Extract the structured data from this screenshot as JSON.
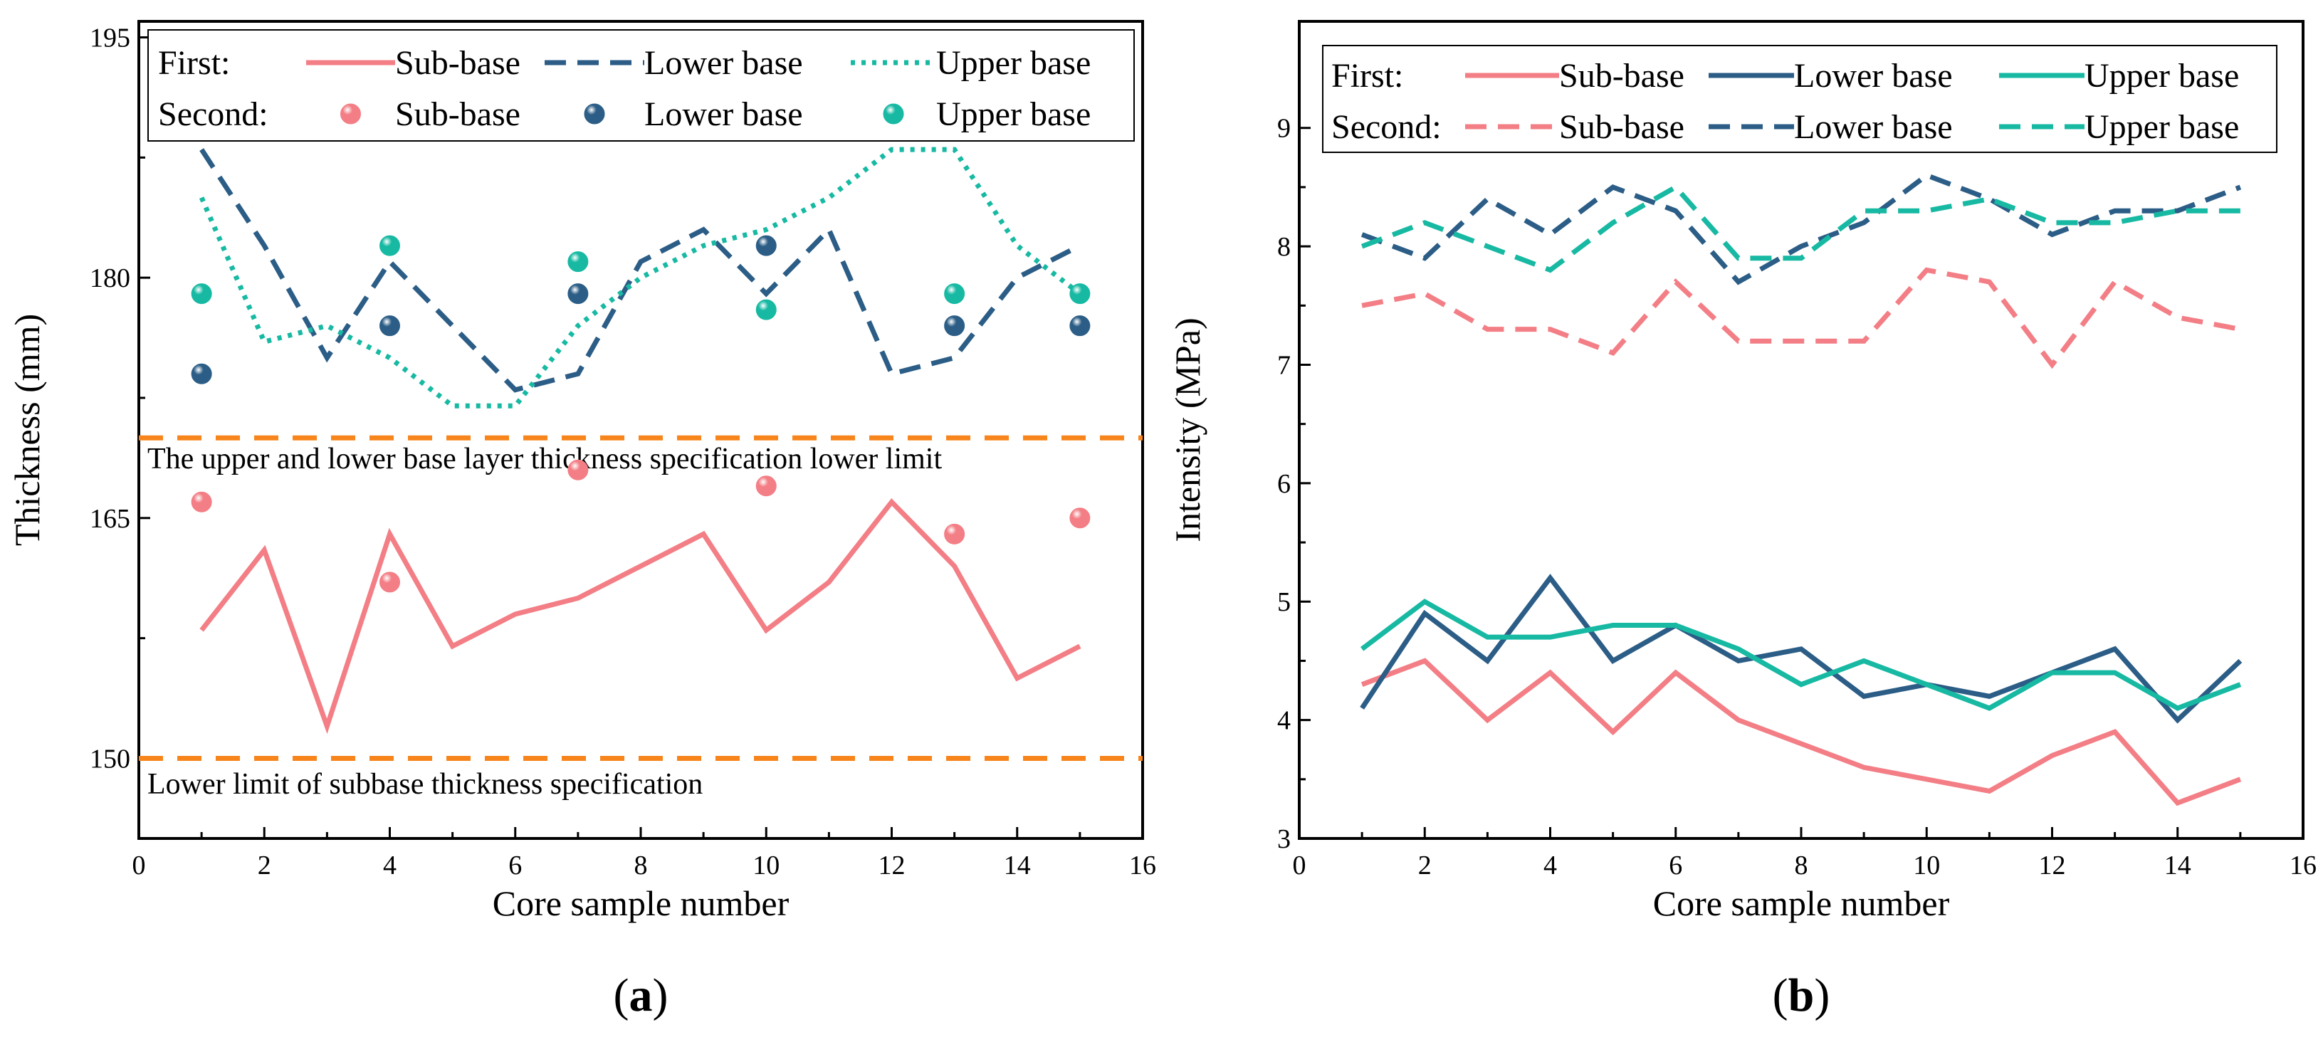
{
  "colors": {
    "sub": "#f37e85",
    "lower": "#2b5d86",
    "upper": "#17b9a3",
    "limit": "#f7851b",
    "axis": "#000000"
  },
  "chart_data": [
    {
      "id": "a",
      "type": "line",
      "panel_label": "a",
      "xlabel": "Core sample number",
      "ylabel": "Thickness (mm)",
      "xlim": [
        0,
        16
      ],
      "ylim": [
        145,
        196
      ],
      "xticks": [
        0,
        2,
        4,
        6,
        8,
        10,
        12,
        14,
        16
      ],
      "yticks": [
        150,
        165,
        180,
        195
      ],
      "legend_row_labels": [
        "First:",
        "Second:"
      ],
      "series": [
        {
          "name": "Sub-base",
          "group": "First",
          "style": "solid",
          "color_key": "sub",
          "x": [
            1,
            2,
            3,
            4,
            5,
            6,
            7,
            8,
            9,
            10,
            11,
            12,
            13,
            14,
            15
          ],
          "values": [
            158,
            163,
            152,
            164,
            157,
            159,
            160,
            162,
            164,
            158,
            161,
            166,
            162,
            155,
            157
          ]
        },
        {
          "name": "Lower base",
          "group": "First",
          "style": "dashed",
          "color_key": "lower",
          "x": [
            1,
            2,
            3,
            4,
            5,
            6,
            7,
            8,
            9,
            10,
            11,
            12,
            13,
            14,
            15
          ],
          "values": [
            188,
            182,
            175,
            181,
            177,
            173,
            174,
            181,
            183,
            179,
            183,
            174,
            175,
            180,
            182
          ]
        },
        {
          "name": "Upper base",
          "group": "First",
          "style": "dotted",
          "color_key": "upper",
          "x": [
            1,
            2,
            3,
            4,
            5,
            6,
            7,
            8,
            9,
            10,
            11,
            12,
            13,
            14,
            15
          ],
          "values": [
            185,
            176,
            177,
            175,
            172,
            172,
            177,
            180,
            182,
            183,
            185,
            188,
            188,
            182,
            179
          ]
        },
        {
          "name": "Sub-base",
          "group": "Second",
          "style": "marker",
          "color_key": "sub",
          "x": [
            1,
            4,
            7,
            10,
            13,
            15
          ],
          "values": [
            166,
            161,
            168,
            167,
            164,
            165
          ]
        },
        {
          "name": "Lower base",
          "group": "Second",
          "style": "marker",
          "color_key": "lower",
          "x": [
            1,
            4,
            7,
            10,
            13,
            15
          ],
          "values": [
            174,
            177,
            179,
            182,
            177,
            177
          ]
        },
        {
          "name": "Upper base",
          "group": "Second",
          "style": "marker",
          "color_key": "upper",
          "x": [
            1,
            4,
            7,
            10,
            13,
            15
          ],
          "values": [
            179,
            182,
            181,
            178,
            179,
            179
          ]
        }
      ],
      "reference_lines": [
        {
          "y": 170,
          "label": "The upper and lower base layer thickness specification lower limit"
        },
        {
          "y": 150,
          "label": "Lower limit of subbase thickness specification"
        }
      ]
    },
    {
      "id": "b",
      "type": "line",
      "panel_label": "b",
      "xlabel": "Core sample number",
      "ylabel": "Intensity (MPa)",
      "xlim": [
        0,
        16
      ],
      "ylim": [
        3,
        9.9
      ],
      "xticks": [
        0,
        2,
        4,
        6,
        8,
        10,
        12,
        14,
        16
      ],
      "yticks": [
        3,
        4,
        5,
        6,
        7,
        8,
        9
      ],
      "legend_row_labels": [
        "First:",
        "Second:"
      ],
      "series": [
        {
          "name": "Sub-base",
          "group": "First",
          "style": "solid",
          "color_key": "sub",
          "x": [
            1,
            2,
            3,
            4,
            5,
            6,
            7,
            8,
            9,
            10,
            11,
            12,
            13,
            14,
            15
          ],
          "values": [
            4.3,
            4.5,
            4.0,
            4.4,
            3.9,
            4.4,
            4.0,
            3.8,
            3.6,
            3.5,
            3.4,
            3.7,
            3.9,
            3.3,
            3.5
          ]
        },
        {
          "name": "Lower base",
          "group": "First",
          "style": "solid",
          "color_key": "lower",
          "x": [
            1,
            2,
            3,
            4,
            5,
            6,
            7,
            8,
            9,
            10,
            11,
            12,
            13,
            14,
            15
          ],
          "values": [
            4.1,
            4.9,
            4.5,
            5.2,
            4.5,
            4.8,
            4.5,
            4.6,
            4.2,
            4.3,
            4.2,
            4.4,
            4.6,
            4.0,
            4.5
          ]
        },
        {
          "name": "Upper base",
          "group": "First",
          "style": "solid",
          "color_key": "upper",
          "x": [
            1,
            2,
            3,
            4,
            5,
            6,
            7,
            8,
            9,
            10,
            11,
            12,
            13,
            14,
            15
          ],
          "values": [
            4.6,
            5.0,
            4.7,
            4.7,
            4.8,
            4.8,
            4.6,
            4.3,
            4.5,
            4.3,
            4.1,
            4.4,
            4.4,
            4.1,
            4.3
          ]
        },
        {
          "name": "Sub-base",
          "group": "Second",
          "style": "dashed",
          "color_key": "sub",
          "x": [
            1,
            2,
            3,
            4,
            5,
            6,
            7,
            8,
            9,
            10,
            11,
            12,
            13,
            14,
            15
          ],
          "values": [
            7.5,
            7.6,
            7.3,
            7.3,
            7.1,
            7.7,
            7.2,
            7.2,
            7.2,
            7.8,
            7.7,
            7.0,
            7.7,
            7.4,
            7.3
          ]
        },
        {
          "name": "Lower base",
          "group": "Second",
          "style": "dashed",
          "color_key": "lower",
          "x": [
            1,
            2,
            3,
            4,
            5,
            6,
            7,
            8,
            9,
            10,
            11,
            12,
            13,
            14,
            15
          ],
          "values": [
            8.1,
            7.9,
            8.4,
            8.1,
            8.5,
            8.3,
            7.7,
            8.0,
            8.2,
            8.6,
            8.4,
            8.1,
            8.3,
            8.3,
            8.5
          ]
        },
        {
          "name": "Upper base",
          "group": "Second",
          "style": "dashed",
          "color_key": "upper",
          "x": [
            1,
            2,
            3,
            4,
            5,
            6,
            7,
            8,
            9,
            10,
            11,
            12,
            13,
            14,
            15
          ],
          "values": [
            8.0,
            8.2,
            8.0,
            7.8,
            8.2,
            8.5,
            7.9,
            7.9,
            8.3,
            8.3,
            8.4,
            8.2,
            8.2,
            8.3,
            8.3
          ]
        }
      ],
      "reference_lines": []
    }
  ]
}
